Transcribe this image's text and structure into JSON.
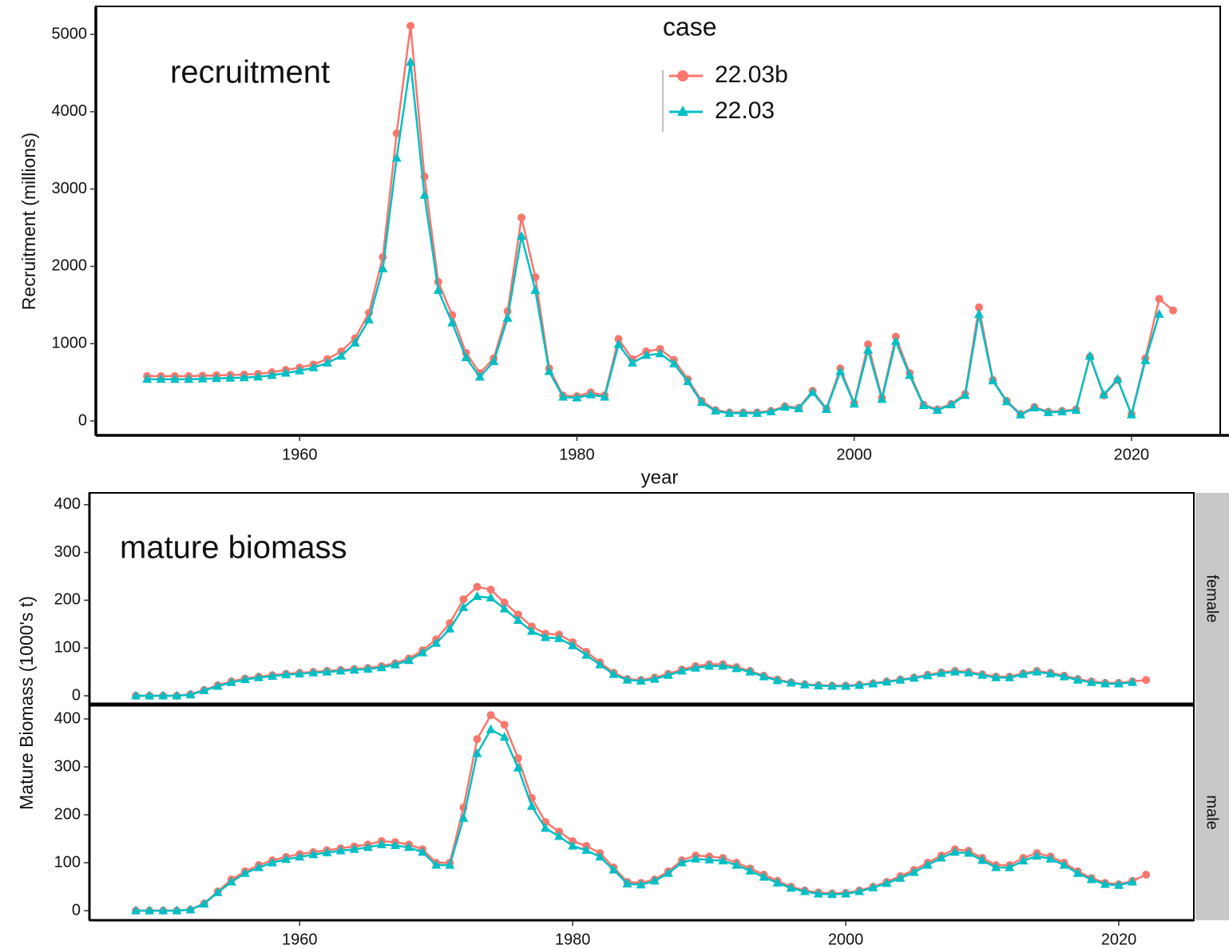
{
  "chart_data": [
    {
      "type": "line",
      "annotation": "recruitment",
      "y_label": "Recruitment (millions)",
      "x_label": "year",
      "legend_title": "case",
      "xlim": [
        1945.3,
        2026.4
      ],
      "xticks": [
        1960,
        1980,
        2000,
        2020
      ],
      "ylim": [
        -186,
        5362
      ],
      "yticks": [
        0,
        1000,
        2000,
        3000,
        4000,
        5000
      ],
      "x": [
        1949,
        1950,
        1951,
        1952,
        1953,
        1954,
        1955,
        1956,
        1957,
        1958,
        1959,
        1960,
        1961,
        1962,
        1963,
        1964,
        1965,
        1966,
        1967,
        1968,
        1969,
        1970,
        1971,
        1972,
        1973,
        1974,
        1975,
        1976,
        1977,
        1978,
        1979,
        1980,
        1981,
        1982,
        1983,
        1984,
        1985,
        1986,
        1987,
        1988,
        1989,
        1990,
        1991,
        1992,
        1993,
        1994,
        1995,
        1996,
        1997,
        1998,
        1999,
        2000,
        2001,
        2002,
        2003,
        2004,
        2005,
        2006,
        2007,
        2008,
        2009,
        2010,
        2011,
        2012,
        2013,
        2014,
        2015,
        2016,
        2017,
        2018,
        2019,
        2020,
        2021,
        2022,
        2023
      ],
      "series": [
        {
          "name": "22.03b",
          "color": "#F8766D",
          "marker": "circle",
          "values": [
            580,
            580,
            580,
            580,
            585,
            590,
            595,
            600,
            610,
            630,
            660,
            690,
            730,
            800,
            900,
            1070,
            1400,
            2120,
            3720,
            5110,
            3160,
            1800,
            1370,
            880,
            620,
            810,
            1420,
            2630,
            1860,
            680,
            330,
            320,
            370,
            330,
            1060,
            800,
            900,
            930,
            790,
            540,
            260,
            140,
            110,
            110,
            110,
            130,
            190,
            170,
            390,
            160,
            680,
            230,
            990,
            300,
            1090,
            620,
            210,
            150,
            220,
            350,
            1470,
            530,
            260,
            90,
            180,
            120,
            130,
            150,
            830,
            330,
            530,
            90,
            810,
            1580,
            1430
          ]
        },
        {
          "name": "22.03",
          "color": "#00BFC4",
          "marker": "triangle",
          "values": [
            540,
            540,
            540,
            540,
            545,
            550,
            555,
            560,
            570,
            590,
            620,
            650,
            690,
            750,
            840,
            1010,
            1310,
            1970,
            3400,
            4640,
            2920,
            1690,
            1270,
            820,
            570,
            770,
            1330,
            2390,
            1690,
            640,
            310,
            300,
            340,
            310,
            990,
            750,
            850,
            870,
            740,
            510,
            240,
            130,
            100,
            100,
            100,
            120,
            180,
            160,
            370,
            150,
            640,
            220,
            920,
            280,
            1030,
            590,
            200,
            140,
            210,
            330,
            1380,
            520,
            250,
            80,
            170,
            110,
            120,
            140,
            840,
            340,
            540,
            80,
            780,
            1380,
            null
          ]
        }
      ]
    },
    {
      "type": "line",
      "annotation": "mature biomass",
      "y_label": "Mature Biomass (1000's t)",
      "xlim": [
        1944.6,
        2025.5
      ],
      "xticks": [
        1960,
        1980,
        2000,
        2020
      ],
      "x": [
        1948,
        1949,
        1950,
        1951,
        1952,
        1953,
        1954,
        1955,
        1956,
        1957,
        1958,
        1959,
        1960,
        1961,
        1962,
        1963,
        1964,
        1965,
        1966,
        1967,
        1968,
        1969,
        1970,
        1971,
        1972,
        1973,
        1974,
        1975,
        1976,
        1977,
        1978,
        1979,
        1980,
        1981,
        1982,
        1983,
        1984,
        1985,
        1986,
        1987,
        1988,
        1989,
        1990,
        1991,
        1992,
        1993,
        1994,
        1995,
        1996,
        1997,
        1998,
        1999,
        2000,
        2001,
        2002,
        2003,
        2004,
        2005,
        2006,
        2007,
        2008,
        2009,
        2010,
        2011,
        2012,
        2013,
        2014,
        2015,
        2016,
        2017,
        2018,
        2019,
        2020,
        2021,
        2022
      ],
      "facets": [
        {
          "label": "female",
          "ylim": [
            -18.4,
            424.7
          ],
          "yticks": [
            0,
            100,
            200,
            300,
            400
          ],
          "series": [
            {
              "color": "#F8766D",
              "marker": "circle",
              "values": [
                0,
                0,
                0,
                0,
                3,
                12,
                22,
                30,
                36,
                40,
                43,
                46,
                48,
                50,
                52,
                54,
                56,
                58,
                62,
                68,
                78,
                95,
                118,
                152,
                202,
                228,
                222,
                195,
                170,
                145,
                130,
                128,
                112,
                92,
                70,
                48,
                35,
                33,
                38,
                46,
                55,
                62,
                66,
                66,
                60,
                52,
                42,
                34,
                28,
                24,
                22,
                21,
                21,
                23,
                26,
                30,
                34,
                38,
                44,
                49,
                52,
                50,
                45,
                40,
                40,
                47,
                52,
                48,
                42,
                35,
                30,
                27,
                27,
                30,
                33
              ]
            },
            {
              "color": "#00BFC4",
              "marker": "triangle",
              "values": [
                0,
                0,
                0,
                0,
                2,
                11,
                20,
                28,
                34,
                38,
                41,
                44,
                46,
                48,
                50,
                52,
                54,
                56,
                59,
                65,
                74,
                90,
                110,
                140,
                185,
                208,
                205,
                182,
                158,
                135,
                122,
                120,
                105,
                85,
                65,
                45,
                33,
                31,
                35,
                43,
                52,
                58,
                62,
                62,
                57,
                50,
                40,
                32,
                27,
                23,
                21,
                20,
                20,
                22,
                25,
                29,
                33,
                37,
                42,
                47,
                50,
                48,
                43,
                38,
                38,
                45,
                50,
                46,
                40,
                33,
                28,
                25,
                25,
                28,
                null
              ]
            }
          ]
        },
        {
          "label": "male",
          "ylim": [
            -20,
            430
          ],
          "yticks": [
            0,
            100,
            200,
            300,
            400
          ],
          "series": [
            {
              "color": "#F8766D",
              "marker": "circle",
              "values": [
                0,
                0,
                0,
                0,
                2,
                15,
                40,
                65,
                82,
                95,
                105,
                112,
                118,
                122,
                126,
                130,
                134,
                138,
                145,
                143,
                138,
                128,
                100,
                100,
                215,
                358,
                408,
                388,
                318,
                235,
                185,
                165,
                145,
                135,
                120,
                90,
                60,
                58,
                65,
                82,
                105,
                115,
                113,
                110,
                100,
                88,
                75,
                62,
                50,
                42,
                38,
                36,
                37,
                42,
                50,
                60,
                72,
                85,
                100,
                115,
                128,
                125,
                110,
                95,
                95,
                110,
                120,
                113,
                100,
                82,
                68,
                58,
                55,
                62,
                75
              ]
            },
            {
              "color": "#00BFC4",
              "marker": "triangle",
              "values": [
                0,
                0,
                0,
                0,
                2,
                14,
                38,
                60,
                78,
                90,
                100,
                107,
                112,
                117,
                121,
                125,
                128,
                132,
                138,
                136,
                132,
                122,
                95,
                95,
                193,
                328,
                378,
                362,
                298,
                218,
                172,
                155,
                135,
                126,
                112,
                85,
                56,
                54,
                62,
                78,
                100,
                108,
                106,
                104,
                95,
                83,
                70,
                58,
                47,
                40,
                35,
                34,
                35,
                40,
                48,
                57,
                68,
                80,
                95,
                110,
                122,
                120,
                105,
                90,
                90,
                104,
                114,
                108,
                95,
                78,
                65,
                55,
                53,
                60,
                null
              ]
            }
          ]
        }
      ]
    }
  ]
}
